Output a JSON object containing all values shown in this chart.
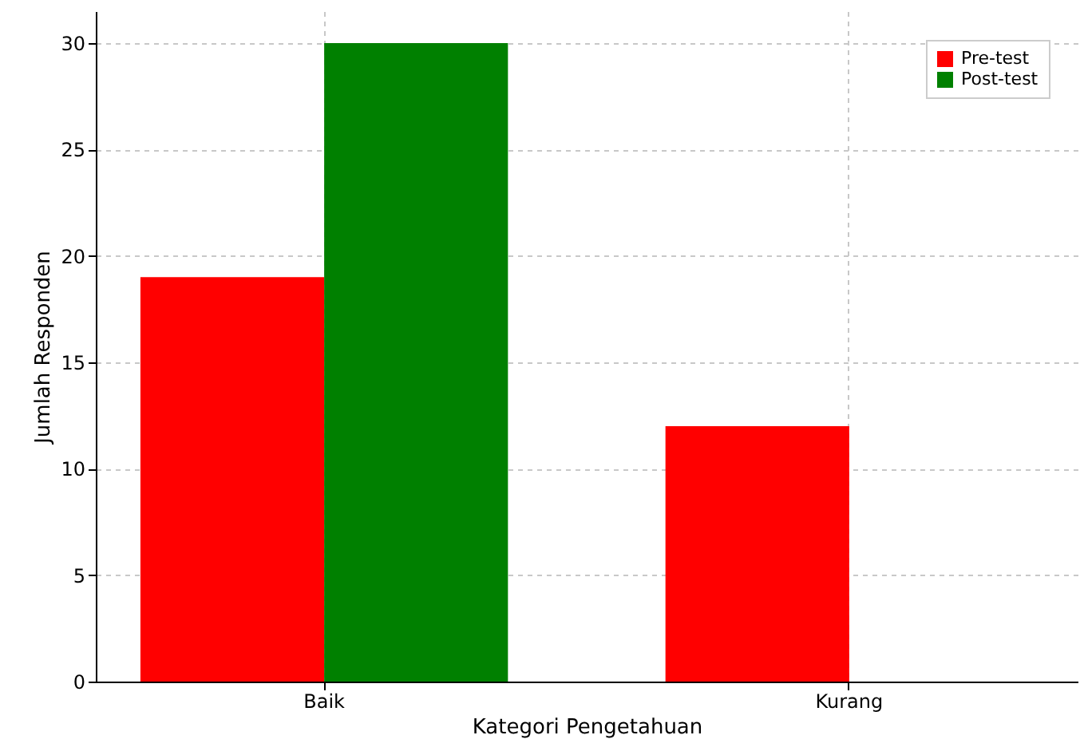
{
  "chart_data": {
    "type": "bar",
    "xlabel": "Kategori Pengetahuan",
    "ylabel": "Jumlah Responden",
    "categories": [
      "Baik",
      "Kurang"
    ],
    "series": [
      {
        "name": "Pre-test",
        "color": "#ff0000",
        "values": [
          19,
          12
        ]
      },
      {
        "name": "Post-test",
        "color": "#008000",
        "values": [
          30,
          0
        ]
      }
    ],
    "ylim": [
      0,
      31.5
    ],
    "yticks": [
      0,
      5,
      10,
      15,
      20,
      25,
      30
    ],
    "grid": true,
    "legend": "top right"
  }
}
